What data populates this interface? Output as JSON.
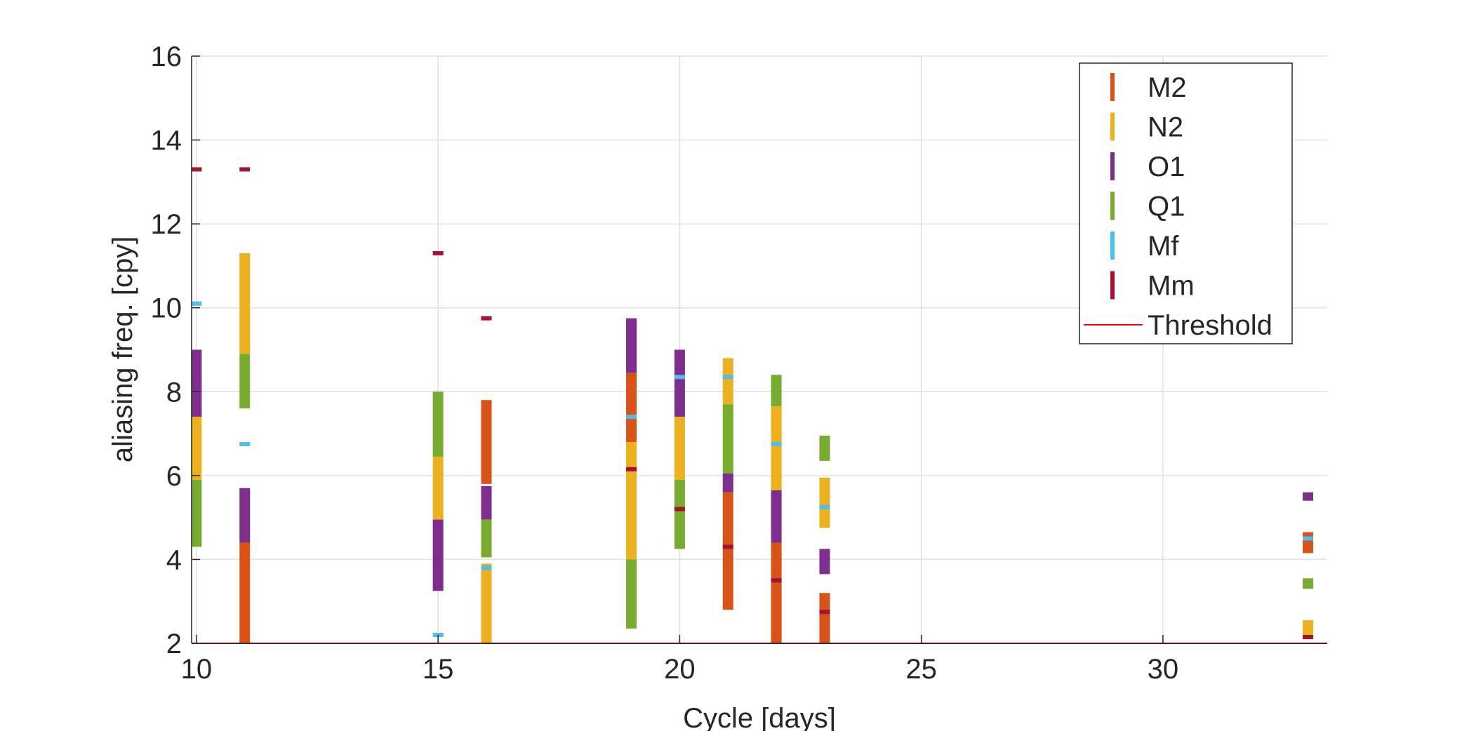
{
  "chart_data": {
    "type": "bar",
    "subtype": "floating-range-bars",
    "xlabel": "Cycle [days]",
    "ylabel": "aliasing freq. [cpy]",
    "xlim": [
      9.9,
      33.4
    ],
    "ylim": [
      2,
      16
    ],
    "xticks": [
      10,
      15,
      20,
      25,
      30
    ],
    "yticks": [
      2,
      4,
      6,
      8,
      10,
      12,
      14,
      16
    ],
    "grid": true,
    "legend_position": "top-right",
    "legend": [
      "M2",
      "N2",
      "O1",
      "Q1",
      "Mf",
      "Mm",
      "Threshold"
    ],
    "colors": {
      "M2": "#D95319",
      "N2": "#EDB120",
      "O1": "#7E2F8E",
      "Q1": "#77AC30",
      "Mf": "#4DBEEE",
      "Mm": "#A2142F",
      "Threshold": "#FF0000"
    },
    "threshold": 2,
    "ranges": [
      {
        "x": 10,
        "series": "O1",
        "low": 7.4,
        "high": 9.0
      },
      {
        "x": 10,
        "series": "N2",
        "low": 5.9,
        "high": 7.4
      },
      {
        "x": 10,
        "series": "Q1",
        "low": 4.3,
        "high": 5.9
      },
      {
        "x": 11,
        "series": "N2",
        "low": 8.9,
        "high": 11.3
      },
      {
        "x": 11,
        "series": "Q1",
        "low": 7.6,
        "high": 8.9
      },
      {
        "x": 11,
        "series": "O1",
        "low": 4.4,
        "high": 5.7
      },
      {
        "x": 11,
        "series": "M2",
        "low": 2.0,
        "high": 4.4
      },
      {
        "x": 15,
        "series": "Q1",
        "low": 6.45,
        "high": 8.0
      },
      {
        "x": 15,
        "series": "N2",
        "low": 4.95,
        "high": 6.45
      },
      {
        "x": 15,
        "series": "O1",
        "low": 3.25,
        "high": 4.95
      },
      {
        "x": 16,
        "series": "M2",
        "low": 5.8,
        "high": 7.8
      },
      {
        "x": 16,
        "series": "O1",
        "low": 4.95,
        "high": 5.75
      },
      {
        "x": 16,
        "series": "Q1",
        "low": 4.05,
        "high": 4.95
      },
      {
        "x": 16,
        "series": "N2",
        "low": 2.0,
        "high": 3.9
      },
      {
        "x": 19,
        "series": "O1",
        "low": 8.45,
        "high": 9.75
      },
      {
        "x": 19,
        "series": "M2",
        "low": 6.8,
        "high": 8.45
      },
      {
        "x": 19,
        "series": "N2",
        "low": 4.0,
        "high": 6.8
      },
      {
        "x": 19,
        "series": "Q1",
        "low": 2.35,
        "high": 4.0
      },
      {
        "x": 20,
        "series": "O1",
        "low": 7.4,
        "high": 9.0
      },
      {
        "x": 20,
        "series": "N2",
        "low": 5.9,
        "high": 7.4
      },
      {
        "x": 20,
        "series": "Q1",
        "low": 4.25,
        "high": 5.9
      },
      {
        "x": 21,
        "series": "N2",
        "low": 7.7,
        "high": 8.8
      },
      {
        "x": 21,
        "series": "Q1",
        "low": 6.05,
        "high": 7.7
      },
      {
        "x": 21,
        "series": "O1",
        "low": 5.6,
        "high": 6.05
      },
      {
        "x": 21,
        "series": "M2",
        "low": 2.8,
        "high": 5.6
      },
      {
        "x": 22,
        "series": "Q1",
        "low": 7.65,
        "high": 8.4
      },
      {
        "x": 22,
        "series": "N2",
        "low": 5.65,
        "high": 7.65
      },
      {
        "x": 22,
        "series": "O1",
        "low": 4.4,
        "high": 5.65
      },
      {
        "x": 22,
        "series": "M2",
        "low": 2.0,
        "high": 4.4
      },
      {
        "x": 23,
        "series": "Q1",
        "low": 6.35,
        "high": 6.95
      },
      {
        "x": 23,
        "series": "N2",
        "low": 4.75,
        "high": 5.95
      },
      {
        "x": 23,
        "series": "O1",
        "low": 3.65,
        "high": 4.25
      },
      {
        "x": 23,
        "series": "M2",
        "low": 2.0,
        "high": 3.2
      },
      {
        "x": 33,
        "series": "O1",
        "low": 5.4,
        "high": 5.6
      },
      {
        "x": 33,
        "series": "M2",
        "low": 4.15,
        "high": 4.65
      },
      {
        "x": 33,
        "series": "Q1",
        "low": 3.3,
        "high": 3.55
      },
      {
        "x": 33,
        "series": "N2",
        "low": 2.1,
        "high": 2.55
      }
    ],
    "marks": [
      {
        "x": 10,
        "series": "Mm",
        "y": 13.3
      },
      {
        "x": 10,
        "series": "Mf",
        "y": 10.1
      },
      {
        "x": 11,
        "series": "Mm",
        "y": 13.3
      },
      {
        "x": 11,
        "series": "Mf",
        "y": 6.75
      },
      {
        "x": 15,
        "series": "Mm",
        "y": 11.3
      },
      {
        "x": 15,
        "series": "Mf",
        "y": 2.2
      },
      {
        "x": 16,
        "series": "Mm",
        "y": 9.75
      },
      {
        "x": 16,
        "series": "Mf",
        "y": 3.8
      },
      {
        "x": 19,
        "series": "Mf",
        "y": 7.4
      },
      {
        "x": 19,
        "series": "Mm",
        "y": 6.15
      },
      {
        "x": 20,
        "series": "Mf",
        "y": 8.35
      },
      {
        "x": 20,
        "series": "Mm",
        "y": 5.2
      },
      {
        "x": 21,
        "series": "Mf",
        "y": 8.35
      },
      {
        "x": 21,
        "series": "Mm",
        "y": 4.3
      },
      {
        "x": 22,
        "series": "Mf",
        "y": 6.75
      },
      {
        "x": 22,
        "series": "Mm",
        "y": 3.5
      },
      {
        "x": 23,
        "series": "Mf",
        "y": 5.25
      },
      {
        "x": 23,
        "series": "Mm",
        "y": 2.75
      },
      {
        "x": 33,
        "series": "Mf",
        "y": 4.5
      },
      {
        "x": 33,
        "series": "Mm",
        "y": 2.15
      }
    ]
  }
}
